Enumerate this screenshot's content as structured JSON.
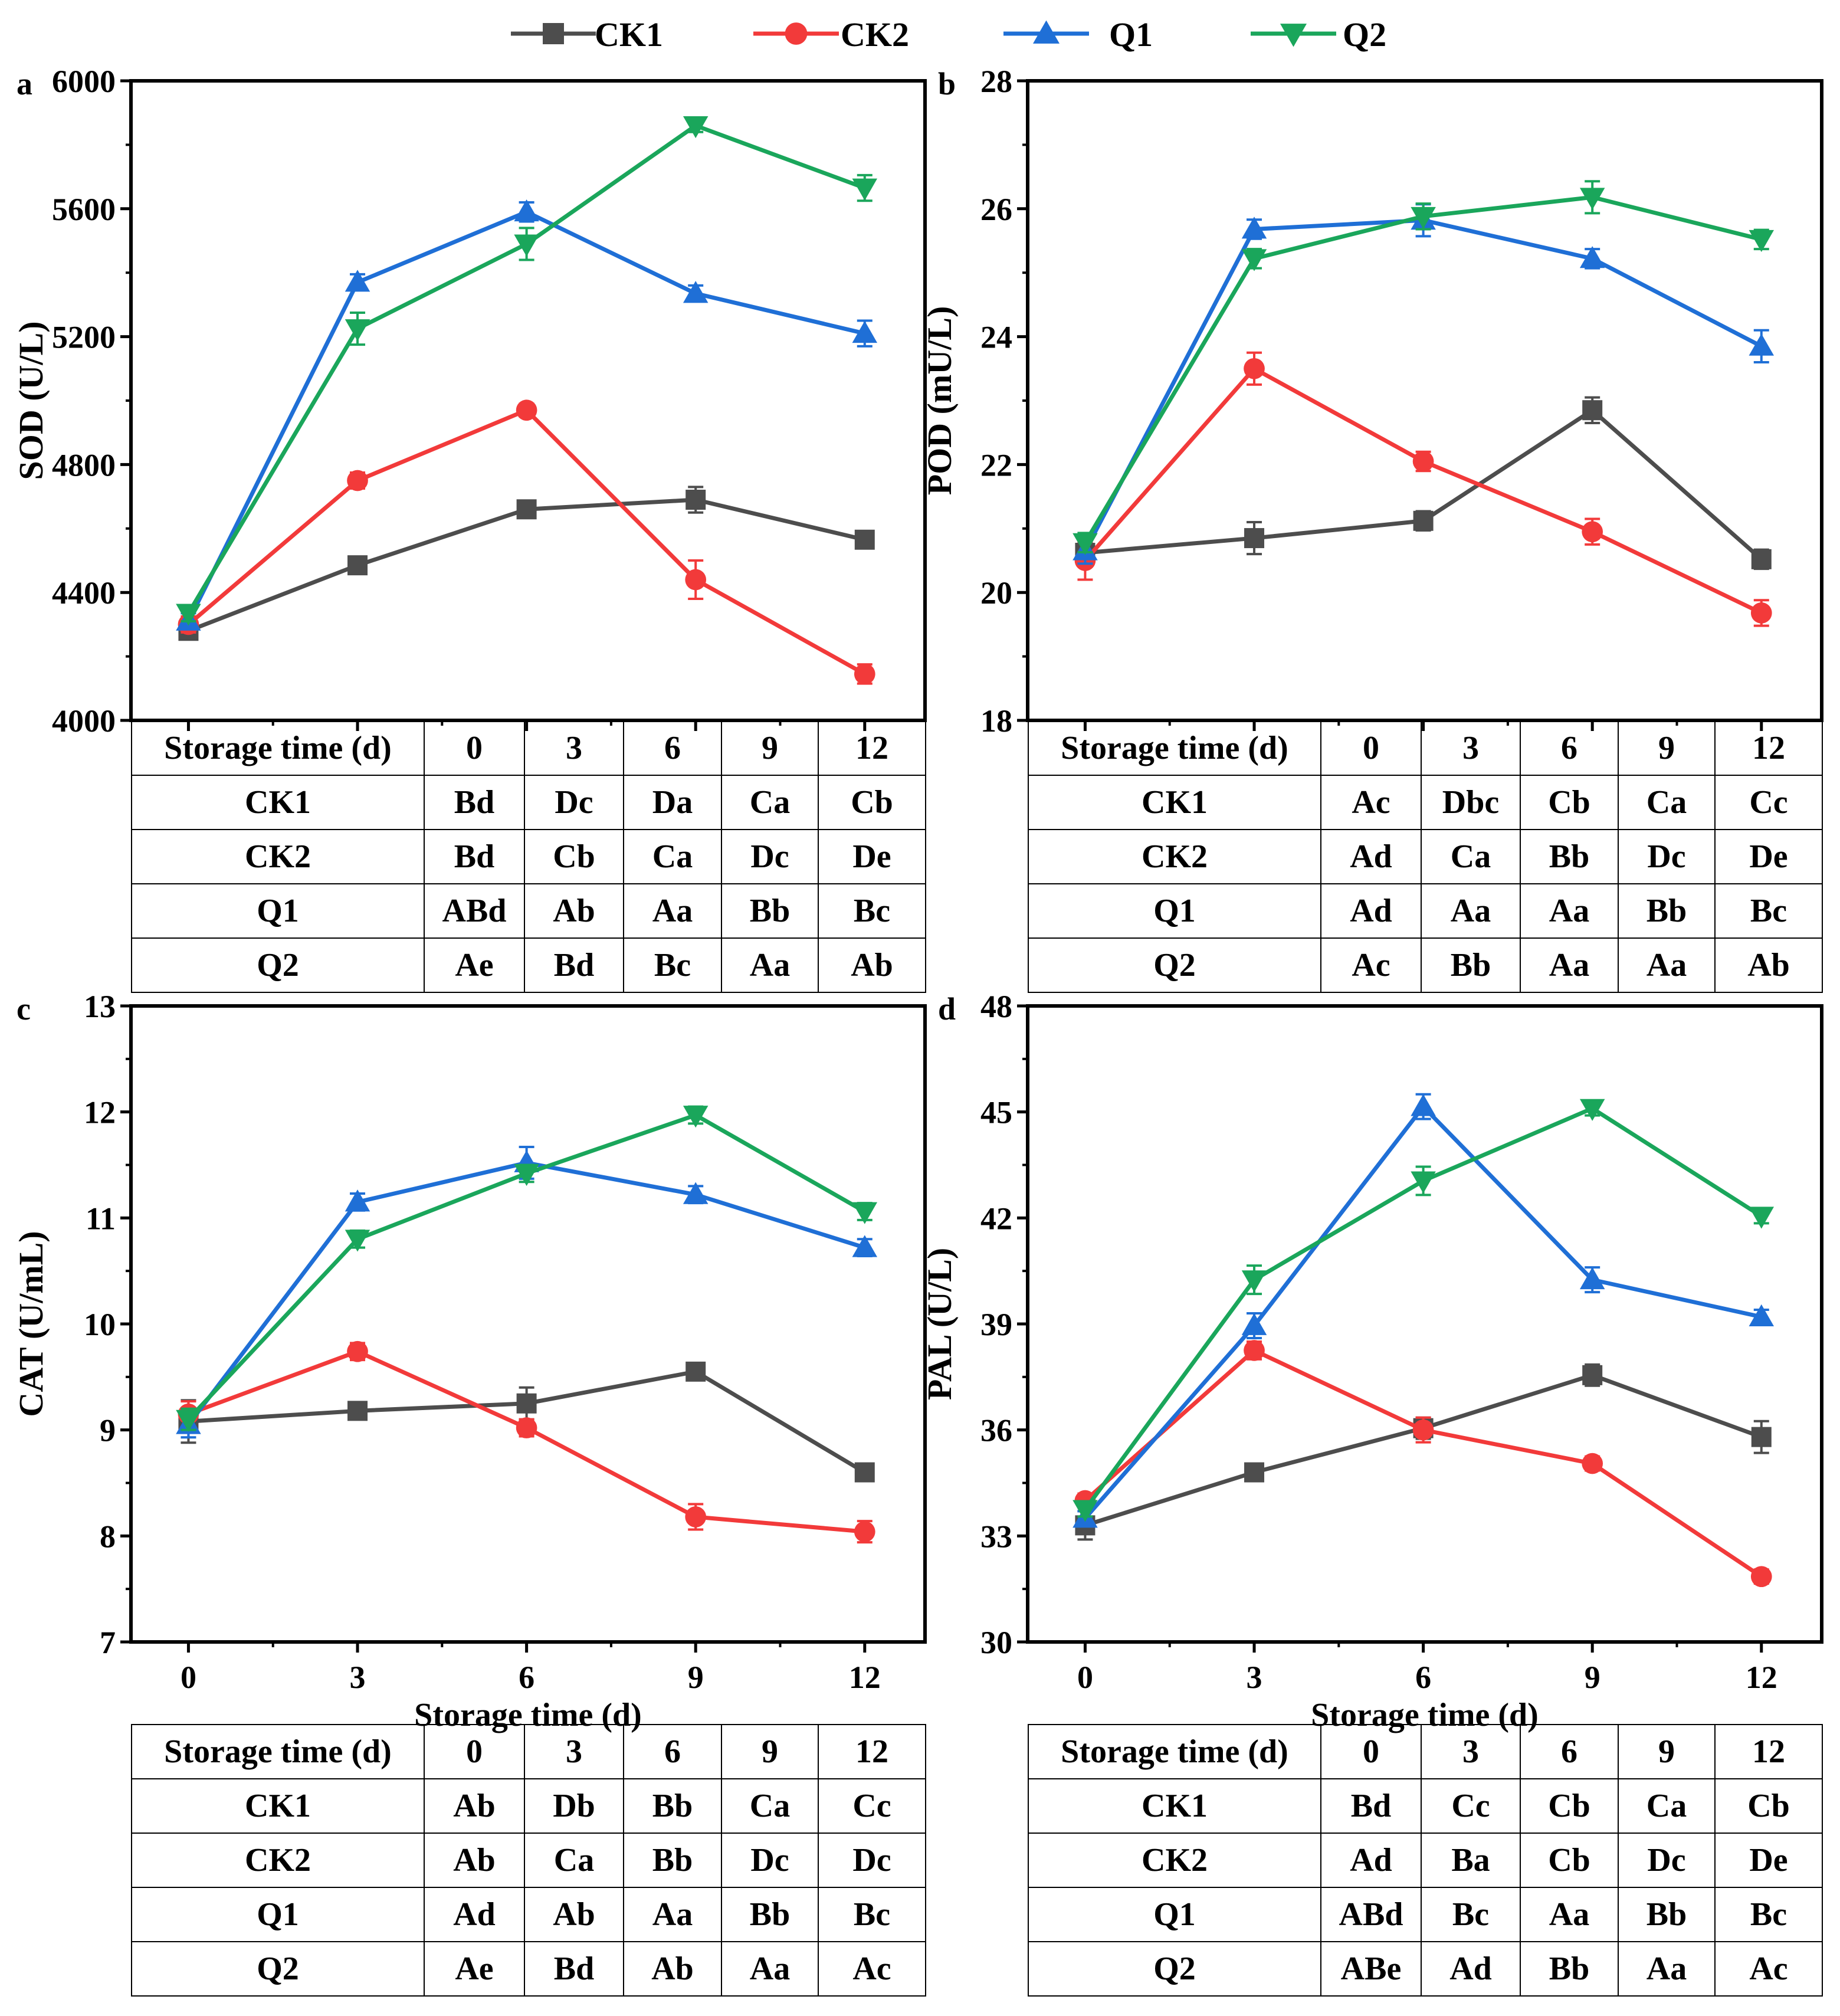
{
  "figure": {
    "legend": [
      {
        "name": "CK1",
        "color": "#4d4d4d",
        "marker": "square"
      },
      {
        "name": "CK2",
        "color": "#f23a3a",
        "marker": "circle"
      },
      {
        "name": "Q1",
        "color": "#1f6fd6",
        "marker": "triangle-up"
      },
      {
        "name": "Q2",
        "color": "#1aa65b",
        "marker": "triangle-down"
      }
    ]
  },
  "chart_data": [
    {
      "panel": "a",
      "type": "line",
      "ylabel": "SOD (U/L)",
      "xlabel": "",
      "x": [
        0,
        3,
        6,
        9,
        12
      ],
      "xticks": [
        "0",
        "3",
        "6",
        "9",
        "12"
      ],
      "show_xticks": false,
      "ylim": [
        4000,
        6000
      ],
      "yticks": [
        "4000",
        "4400",
        "4800",
        "5200",
        "5600",
        "6000"
      ],
      "series": [
        {
          "name": "CK1",
          "values": [
            4280,
            4485,
            4660,
            4690,
            4565
          ],
          "errors": [
            25,
            20,
            25,
            40,
            25
          ]
        },
        {
          "name": "CK2",
          "values": [
            4300,
            4750,
            4970,
            4440,
            4145
          ],
          "errors": [
            25,
            25,
            20,
            60,
            30
          ]
        },
        {
          "name": "Q1",
          "values": [
            4310,
            5370,
            5590,
            5335,
            5210
          ],
          "errors": [
            25,
            25,
            30,
            25,
            40
          ]
        },
        {
          "name": "Q2",
          "values": [
            4335,
            5225,
            5490,
            5860,
            5665
          ],
          "errors": [
            25,
            50,
            50,
            20,
            40
          ]
        }
      ]
    },
    {
      "panel": "b",
      "type": "line",
      "ylabel": "POD (mU/L)",
      "xlabel": "",
      "x": [
        0,
        3,
        6,
        9,
        12
      ],
      "xticks": [
        "0",
        "3",
        "6",
        "9",
        "12"
      ],
      "show_xticks": false,
      "ylim": [
        18,
        28
      ],
      "yticks": [
        "18",
        "20",
        "22",
        "24",
        "26",
        "28"
      ],
      "series": [
        {
          "name": "CK1",
          "values": [
            20.62,
            20.85,
            21.12,
            22.85,
            20.52
          ],
          "errors": [
            0.15,
            0.25,
            0.15,
            0.2,
            0.15
          ]
        },
        {
          "name": "CK2",
          "values": [
            20.5,
            23.5,
            22.05,
            20.95,
            19.68
          ],
          "errors": [
            0.3,
            0.25,
            0.15,
            0.2,
            0.2
          ]
        },
        {
          "name": "Q1",
          "values": [
            20.65,
            25.68,
            25.82,
            25.22,
            23.85
          ],
          "errors": [
            0.2,
            0.15,
            0.25,
            0.15,
            0.25
          ]
        },
        {
          "name": "Q2",
          "values": [
            20.78,
            25.22,
            25.88,
            26.18,
            25.52
          ],
          "errors": [
            0.15,
            0.15,
            0.2,
            0.25,
            0.15
          ]
        }
      ]
    },
    {
      "panel": "c",
      "type": "line",
      "ylabel": "CAT (U/mL)",
      "xlabel": "Storage time (d)",
      "x": [
        0,
        3,
        6,
        9,
        12
      ],
      "xticks": [
        "0",
        "3",
        "6",
        "9",
        "12"
      ],
      "show_xticks": true,
      "ylim": [
        7,
        13
      ],
      "yticks": [
        "7",
        "8",
        "9",
        "10",
        "11",
        "12",
        "13"
      ],
      "series": [
        {
          "name": "CK1",
          "values": [
            9.08,
            9.18,
            9.25,
            9.55,
            8.6
          ],
          "errors": [
            0.2,
            0.08,
            0.15,
            0.08,
            0.08
          ]
        },
        {
          "name": "CK2",
          "values": [
            9.15,
            9.74,
            9.02,
            8.18,
            8.04
          ],
          "errors": [
            0.12,
            0.08,
            0.08,
            0.12,
            0.1
          ]
        },
        {
          "name": "Q1",
          "values": [
            9.05,
            11.15,
            11.52,
            11.22,
            10.72
          ],
          "errors": [
            0.12,
            0.08,
            0.15,
            0.08,
            0.08
          ]
        },
        {
          "name": "Q2",
          "values": [
            9.1,
            10.8,
            11.42,
            11.97,
            11.06
          ],
          "errors": [
            0.1,
            0.08,
            0.08,
            0.08,
            0.08
          ]
        }
      ]
    },
    {
      "panel": "d",
      "type": "line",
      "ylabel": "PAL (U/L)",
      "xlabel": "Storage time (d)",
      "x": [
        0,
        3,
        6,
        9,
        12
      ],
      "xticks": [
        "0",
        "3",
        "6",
        "9",
        "12"
      ],
      "show_xticks": true,
      "ylim": [
        30,
        48
      ],
      "yticks": [
        "30",
        "33",
        "36",
        "39",
        "42",
        "45",
        "48"
      ],
      "series": [
        {
          "name": "CK1",
          "values": [
            33.3,
            34.8,
            36.05,
            37.55,
            35.8
          ],
          "errors": [
            0.4,
            0.2,
            0.3,
            0.3,
            0.45
          ]
        },
        {
          "name": "CK2",
          "values": [
            34.0,
            38.25,
            36.0,
            35.05,
            31.85
          ],
          "errors": [
            0.2,
            0.25,
            0.35,
            0.2,
            0.2
          ]
        },
        {
          "name": "Q1",
          "values": [
            33.5,
            38.95,
            45.15,
            40.25,
            39.2
          ],
          "errors": [
            0.2,
            0.35,
            0.35,
            0.35,
            0.2
          ]
        },
        {
          "name": "Q2",
          "values": [
            33.75,
            40.25,
            43.05,
            45.1,
            42.05
          ],
          "errors": [
            0.2,
            0.4,
            0.4,
            0.2,
            0.2
          ]
        }
      ]
    }
  ],
  "tables": [
    {
      "headers": [
        "Storage time (d)",
        "0",
        "3",
        "6",
        "9",
        "12"
      ],
      "rows": [
        [
          "CK1",
          "Bd",
          "Dc",
          "Da",
          "Ca",
          "Cb"
        ],
        [
          "CK2",
          "Bd",
          "Cb",
          "Ca",
          "Dc",
          "De"
        ],
        [
          "Q1",
          "ABd",
          "Ab",
          "Aa",
          "Bb",
          "Bc"
        ],
        [
          "Q2",
          "Ae",
          "Bd",
          "Bc",
          "Aa",
          "Ab"
        ]
      ]
    },
    {
      "headers": [
        "Storage time (d)",
        "0",
        "3",
        "6",
        "9",
        "12"
      ],
      "rows": [
        [
          "CK1",
          "Ac",
          "Dbc",
          "Cb",
          "Ca",
          "Cc"
        ],
        [
          "CK2",
          "Ad",
          "Ca",
          "Bb",
          "Dc",
          "De"
        ],
        [
          "Q1",
          "Ad",
          "Aa",
          "Aa",
          "Bb",
          "Bc"
        ],
        [
          "Q2",
          "Ac",
          "Bb",
          "Aa",
          "Aa",
          "Ab"
        ]
      ]
    },
    {
      "headers": [
        "Storage time (d)",
        "0",
        "3",
        "6",
        "9",
        "12"
      ],
      "rows": [
        [
          "CK1",
          "Ab",
          "Db",
          "Bb",
          "Ca",
          "Cc"
        ],
        [
          "CK2",
          "Ab",
          "Ca",
          "Bb",
          "Dc",
          "Dc"
        ],
        [
          "Q1",
          "Ad",
          "Ab",
          "Aa",
          "Bb",
          "Bc"
        ],
        [
          "Q2",
          "Ae",
          "Bd",
          "Ab",
          "Aa",
          "Ac"
        ]
      ]
    },
    {
      "headers": [
        "Storage time (d)",
        "0",
        "3",
        "6",
        "9",
        "12"
      ],
      "rows": [
        [
          "CK1",
          "Bd",
          "Cc",
          "Cb",
          "Ca",
          "Cb"
        ],
        [
          "CK2",
          "Ad",
          "Ba",
          "Cb",
          "Dc",
          "De"
        ],
        [
          "Q1",
          "ABd",
          "Bc",
          "Aa",
          "Bb",
          "Bc"
        ],
        [
          "Q2",
          "ABe",
          "Ad",
          "Bb",
          "Aa",
          "Ac"
        ]
      ]
    }
  ]
}
